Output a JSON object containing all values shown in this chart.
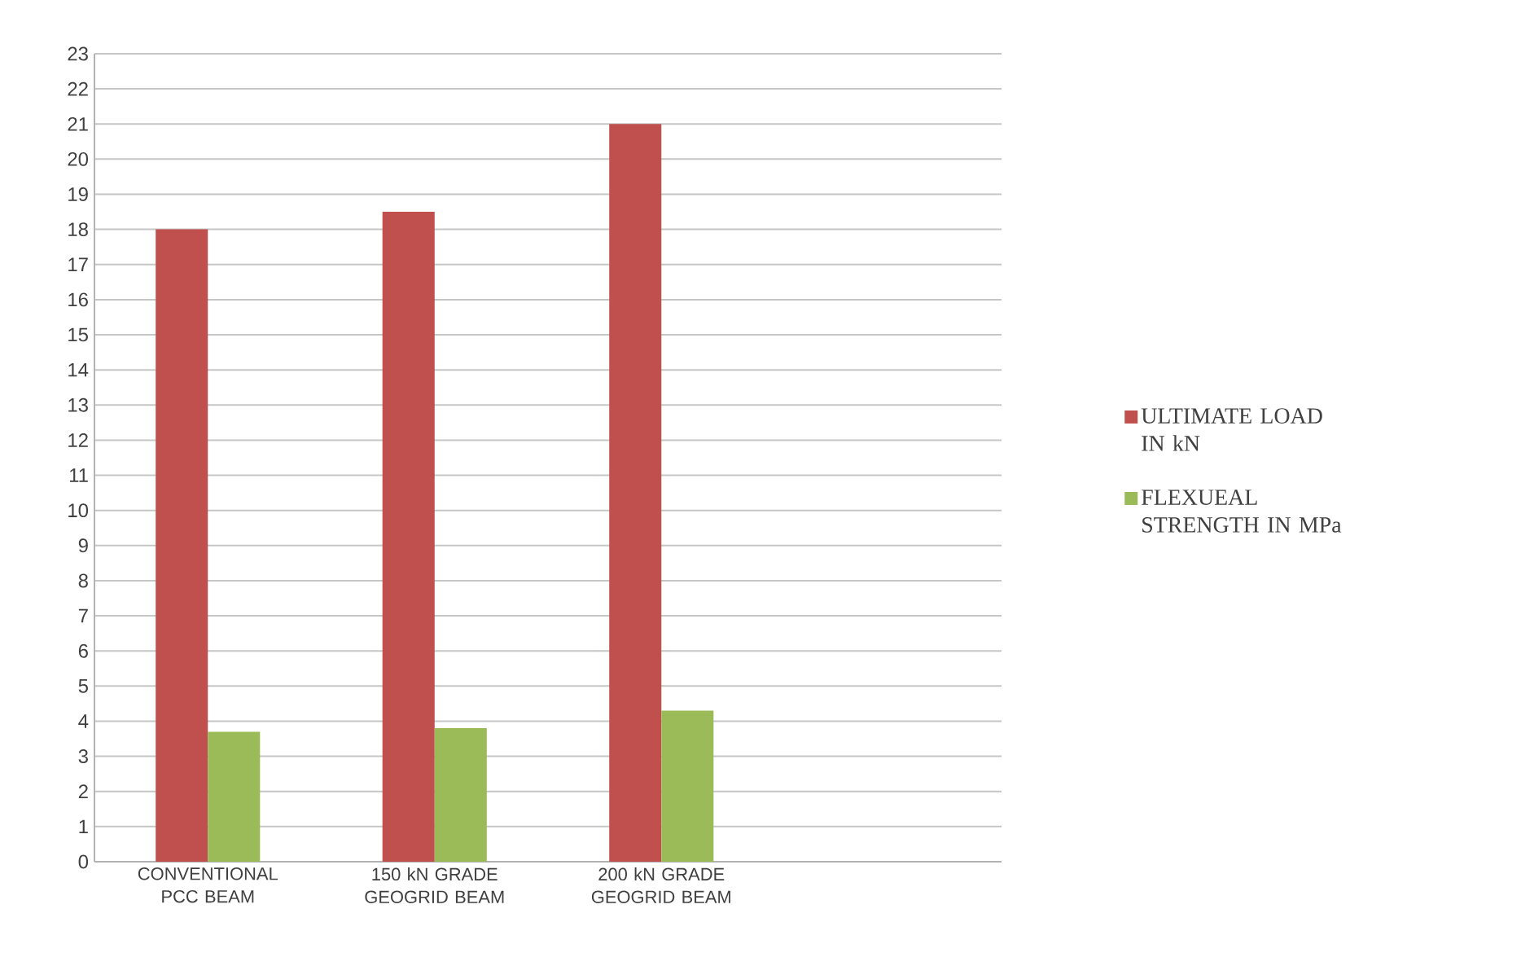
{
  "chart_data": {
    "type": "bar",
    "categories": [
      "CONVENTIONAL PCC BEAM",
      "150 kN GRADE GEOGRID BEAM",
      "200 kN GRADE GEOGRID BEAM",
      null
    ],
    "series": [
      {
        "name": "ULTIMATE LOAD IN kN",
        "color": "#c0504d",
        "values": [
          18,
          18.5,
          21,
          null
        ]
      },
      {
        "name": "FLEXUEAL STRENGTH IN MPa",
        "color": "#9bbb59",
        "values": [
          3.7,
          3.8,
          4.3,
          null
        ]
      }
    ],
    "ylim": [
      0,
      23
    ],
    "yticks": [
      0,
      1,
      2,
      3,
      4,
      5,
      6,
      7,
      8,
      9,
      10,
      11,
      12,
      13,
      14,
      15,
      16,
      17,
      18,
      19,
      20,
      21,
      22,
      23
    ],
    "grid": "y",
    "legend": "right"
  }
}
